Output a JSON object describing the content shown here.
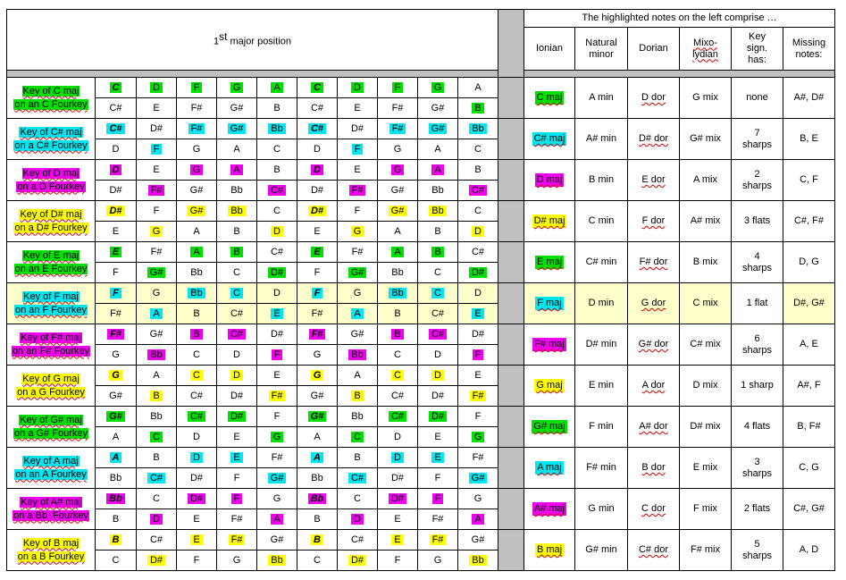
{
  "title": {
    "main": "1",
    "sup": "st",
    "rest": " major position"
  },
  "comprise_header": "The highlighted notes on the left comprise …",
  "columns": [
    {
      "lines": [
        "Ionian"
      ],
      "wavy": [
        false
      ]
    },
    {
      "lines": [
        "Natural",
        "minor"
      ],
      "wavy": [
        false,
        false
      ]
    },
    {
      "lines": [
        "Dorian"
      ],
      "wavy": [
        false
      ]
    },
    {
      "lines": [
        "Mixo-",
        "lydian"
      ],
      "wavy": [
        true,
        true
      ]
    },
    {
      "lines": [
        "Key",
        "sign.",
        "has:"
      ],
      "wavy": [
        false,
        false,
        false
      ]
    },
    {
      "lines": [
        "Missing",
        "notes:"
      ],
      "wavy": [
        false,
        false
      ]
    }
  ],
  "colors": {
    "green": "#00e000",
    "cyan": "#00e5ee",
    "magenta": "#ee00ee",
    "yellow": "#ffff00",
    "highlight_row": "#ffffcc",
    "gap": "#c0c0c0"
  },
  "rows": [
    {
      "key1": "Key of C maj",
      "key2": "on an C Fourkey",
      "color": "green",
      "top": [
        "C",
        "D",
        "F",
        "G",
        "A",
        "C",
        "D",
        "F",
        "G",
        "A"
      ],
      "bot": [
        "C#",
        "E",
        "F#",
        "G#",
        "B",
        "C#",
        "E",
        "F#",
        "G#",
        "B"
      ],
      "hl": [
        "t",
        "t",
        "t",
        "t",
        "t",
        "t",
        "t",
        "t",
        "t",
        "b"
      ],
      "ionian": "C maj",
      "minor": "A min",
      "dorian": "D dor",
      "mixo": "G mix",
      "keysig": [
        "none"
      ],
      "missing": "A#, D#"
    },
    {
      "key1": "Key of C# maj",
      "key2": "on a C# Fourkey",
      "color": "cyan",
      "top": [
        "C#",
        "D#",
        "F#",
        "G#",
        "Bb",
        "C#",
        "D#",
        "F#",
        "G#",
        "Bb"
      ],
      "bot": [
        "D",
        "F",
        "G",
        "A",
        "C",
        "D",
        "F",
        "G",
        "A",
        "C"
      ],
      "hl": [
        "t",
        "b",
        "t",
        "t",
        "t",
        "t",
        "b",
        "t",
        "t",
        "t"
      ],
      "ionian": "C# maj",
      "minor": "A# min",
      "dorian": "D# dor",
      "mixo": "G# mix",
      "keysig": [
        "7",
        "sharps"
      ],
      "missing": "B, E"
    },
    {
      "key1": "Key of D maj",
      "key2": "on a D Fourkey",
      "color": "magenta",
      "top": [
        "D",
        "E",
        "G",
        "A",
        "B",
        "D",
        "E",
        "G",
        "A",
        "B"
      ],
      "bot": [
        "D#",
        "F#",
        "G#",
        "Bb",
        "C#",
        "D#",
        "F#",
        "G#",
        "Bb",
        "C#"
      ],
      "hl": [
        "t",
        "b",
        "t",
        "t",
        "b",
        "t",
        "b",
        "t",
        "t",
        "b"
      ],
      "ionian": "D maj",
      "minor": "B min",
      "dorian": "E dor",
      "mixo": "A mix",
      "keysig": [
        "2",
        "sharps"
      ],
      "missing": "C, F"
    },
    {
      "key1": "Key of D# maj",
      "key2": "on a D# Fourkey",
      "color": "yellow",
      "top": [
        "D#",
        "F",
        "G#",
        "Bb",
        "C",
        "D#",
        "F",
        "G#",
        "Bb",
        "C"
      ],
      "bot": [
        "E",
        "G",
        "A",
        "B",
        "D",
        "E",
        "G",
        "A",
        "B",
        "D"
      ],
      "hl": [
        "t",
        "b",
        "t",
        "t",
        "b",
        "t",
        "b",
        "t",
        "t",
        "b"
      ],
      "ionian": "D# maj",
      "minor": "C min",
      "dorian": "F dor",
      "mixo": "A# mix",
      "keysig": [
        "3 flats"
      ],
      "missing": "C#, F#"
    },
    {
      "key1": "Key of E maj",
      "key2": "on an E Fourkey",
      "color": "green",
      "top": [
        "E",
        "F#",
        "A",
        "B",
        "C#",
        "E",
        "F#",
        "A",
        "B",
        "C#"
      ],
      "bot": [
        "F",
        "G#",
        "Bb",
        "C",
        "D#",
        "F",
        "G#",
        "Bb",
        "C",
        "D#"
      ],
      "hl": [
        "t",
        "b",
        "t",
        "t",
        "b",
        "t",
        "b",
        "t",
        "t",
        "b"
      ],
      "ionian": "E maj",
      "minor": "C# min",
      "dorian": "F# dor",
      "mixo": "B mix",
      "keysig": [
        "4",
        "sharps"
      ],
      "missing": "D, G"
    },
    {
      "key1": "Key of F maj",
      "key2": "on an F Fourkey",
      "color": "cyan",
      "highlight": true,
      "top": [
        "F",
        "G",
        "Bb",
        "C",
        "D",
        "F",
        "G",
        "Bb",
        "C",
        "D"
      ],
      "bot": [
        "F#",
        "A",
        "B",
        "C#",
        "E",
        "F#",
        "A",
        "B",
        "C#",
        "E"
      ],
      "hl": [
        "t",
        "b",
        "t",
        "t",
        "b",
        "t",
        "b",
        "t",
        "t",
        "b"
      ],
      "ionian": "F maj",
      "minor": "D min",
      "dorian": "G dor",
      "mixo": "C mix",
      "keysig": [
        "1 flat"
      ],
      "missing": "D#, G#"
    },
    {
      "key1": "Key of F# maj",
      "key2": "on an F# Fourkey",
      "color": "magenta",
      "top": [
        "F#",
        "G#",
        "B",
        "C#",
        "D#",
        "F#",
        "G#",
        "B",
        "C#",
        "D#"
      ],
      "bot": [
        "G",
        "Bb",
        "C",
        "D",
        "F",
        "G",
        "Bb",
        "C",
        "D",
        "F"
      ],
      "hl": [
        "t",
        "b",
        "t",
        "t",
        "b",
        "t",
        "b",
        "t",
        "t",
        "b"
      ],
      "ionian": "F# maj",
      "minor": "D# min",
      "dorian": "G# dor",
      "mixo": "C# mix",
      "keysig": [
        "6",
        "sharps"
      ],
      "missing": "A, E"
    },
    {
      "key1": "Key of G maj",
      "key2": "on a G Fourkey",
      "color": "yellow",
      "top": [
        "G",
        "A",
        "C",
        "D",
        "E",
        "G",
        "A",
        "C",
        "D",
        "E"
      ],
      "bot": [
        "G#",
        "B",
        "C#",
        "D#",
        "F#",
        "G#",
        "B",
        "C#",
        "D#",
        "F#"
      ],
      "hl": [
        "t",
        "b",
        "t",
        "t",
        "b",
        "t",
        "b",
        "t",
        "t",
        "b"
      ],
      "ionian": "G maj",
      "minor": "E min",
      "dorian": "A dor",
      "mixo": "D mix",
      "keysig": [
        "1 sharp"
      ],
      "missing": "A#, F"
    },
    {
      "key1": "Key of G# maj",
      "key2": "on a G# Fourkey",
      "color": "green",
      "top": [
        "G#",
        "Bb",
        "C#",
        "D#",
        "F",
        "G#",
        "Bb",
        "C#",
        "D#",
        "F"
      ],
      "bot": [
        "A",
        "C",
        "D",
        "E",
        "G",
        "A",
        "C",
        "D",
        "E",
        "G"
      ],
      "hl": [
        "t",
        "b",
        "t",
        "t",
        "b",
        "t",
        "b",
        "t",
        "t",
        "b"
      ],
      "ionian": "G# maj",
      "minor": "F min",
      "dorian": "A# dor",
      "mixo": "D# mix",
      "keysig": [
        "4 flats"
      ],
      "missing": "B, F#"
    },
    {
      "key1": "Key of A maj",
      "key2": "on an A Fourkey",
      "color": "cyan",
      "top": [
        "A",
        "B",
        "D",
        "E",
        "F#",
        "A",
        "B",
        "D",
        "E",
        "F#"
      ],
      "bot": [
        "Bb",
        "C#",
        "D#",
        "F",
        "G#",
        "Bb",
        "C#",
        "D#",
        "F",
        "G#"
      ],
      "hl": [
        "t",
        "b",
        "t",
        "t",
        "b",
        "t",
        "b",
        "t",
        "t",
        "b"
      ],
      "ionian": "A maj",
      "minor": "F# min",
      "dorian": "B dor",
      "mixo": "E mix",
      "keysig": [
        "3",
        "sharps"
      ],
      "missing": "C, G"
    },
    {
      "key1": "Key of A# maj",
      "key2": "on a Bb  Fourkey",
      "color": "magenta",
      "top": [
        "Bb",
        "C",
        "D#",
        "F",
        "G",
        "Bb",
        "C",
        "D#",
        "F",
        "G"
      ],
      "bot": [
        "B",
        "D",
        "E",
        "F#",
        "A",
        "B",
        "D",
        "E",
        "F#",
        "A"
      ],
      "hl": [
        "t",
        "b",
        "t",
        "t",
        "b",
        "t",
        "b",
        "t",
        "t",
        "b"
      ],
      "ionian": "A# maj",
      "minor": "G min",
      "dorian": "C dor",
      "mixo": "F mix",
      "keysig": [
        "2 flats"
      ],
      "missing": "C#, G#"
    },
    {
      "key1": "Key of B maj",
      "key2": "on a B Fourkey",
      "color": "yellow",
      "top": [
        "B",
        "C#",
        "E",
        "F#",
        "G#",
        "B",
        "C#",
        "E",
        "F#",
        "G#"
      ],
      "bot": [
        "C",
        "D#",
        "F",
        "G",
        "Bb",
        "C",
        "D#",
        "F",
        "G",
        "Bb"
      ],
      "hl": [
        "t",
        "b",
        "t",
        "t",
        "b",
        "t",
        "b",
        "t",
        "t",
        "b"
      ],
      "ionian": "B maj",
      "minor": "G# min",
      "dorian": "C# dor",
      "mixo": "F# mix",
      "keysig": [
        "5",
        "sharps"
      ],
      "missing": "A, D"
    }
  ]
}
